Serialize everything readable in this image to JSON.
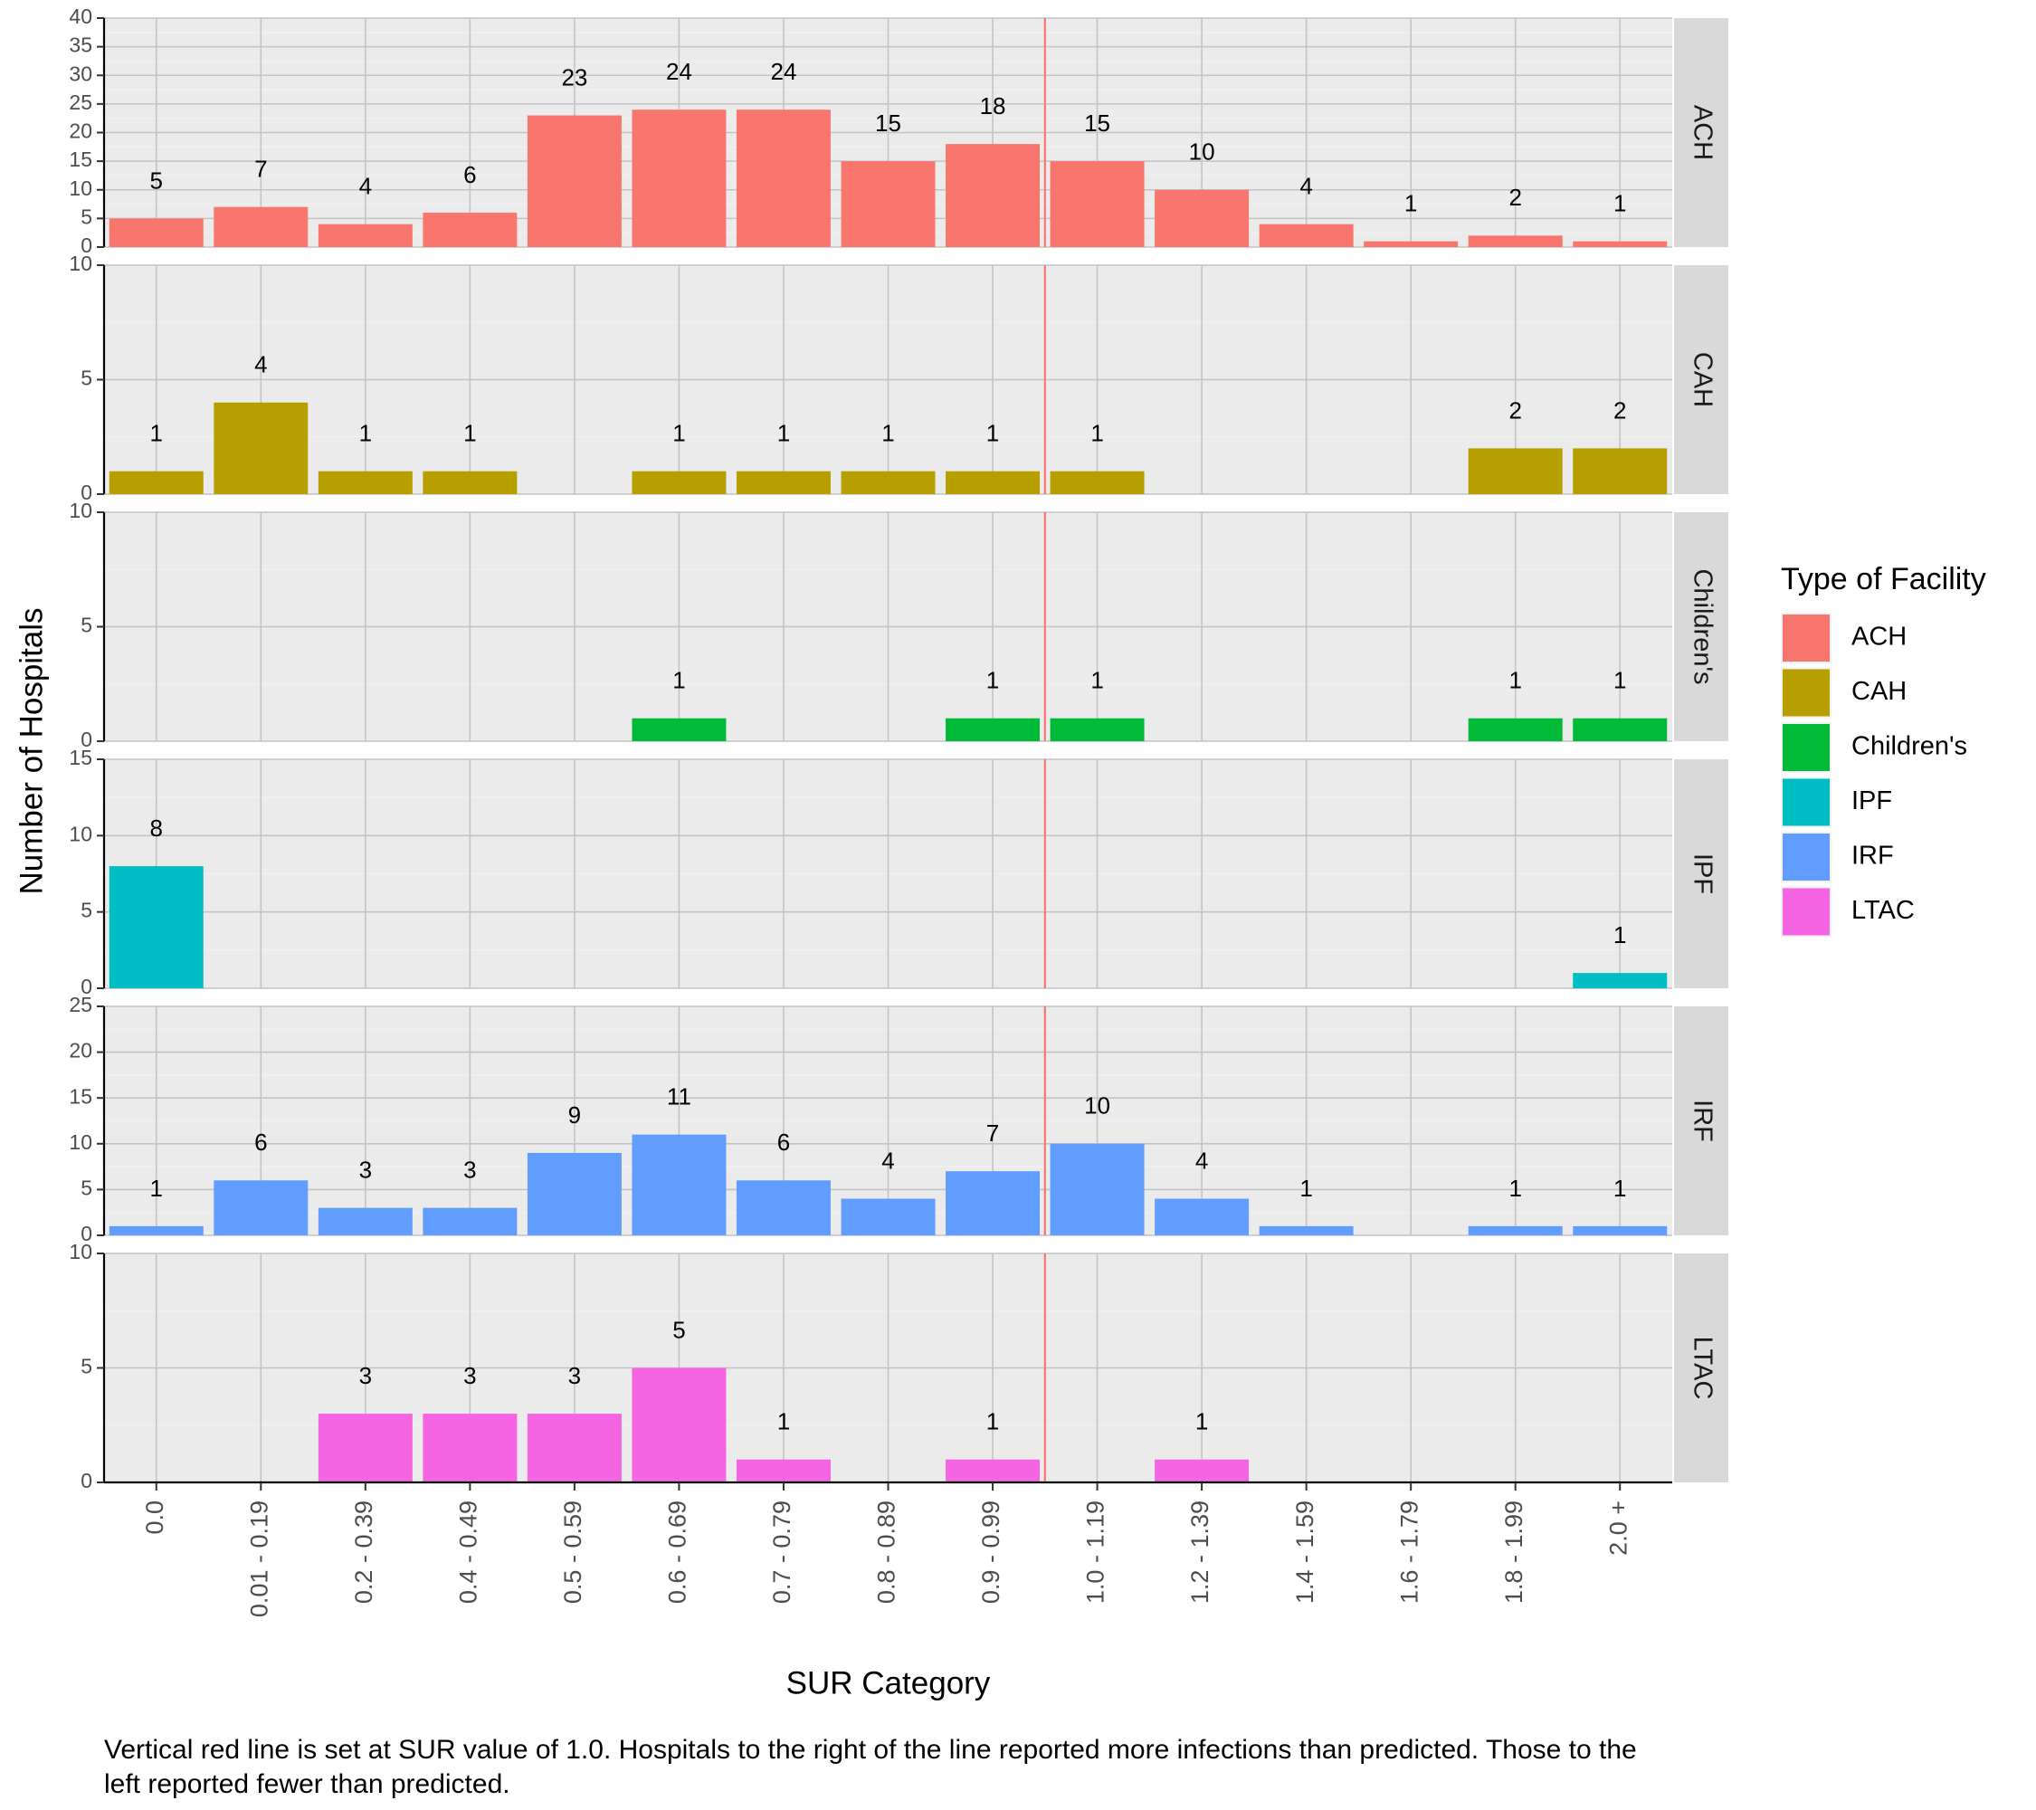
{
  "chart_data": {
    "type": "bar",
    "title": "",
    "xlabel": "SUR Category",
    "ylabel": "Number of Hospitals",
    "categories": [
      "0.0",
      "0.01 - 0.19",
      "0.2 - 0.39",
      "0.4 - 0.49",
      "0.5 - 0.59",
      "0.6 - 0.69",
      "0.7 - 0.79",
      "0.8 - 0.89",
      "0.9 - 0.99",
      "1.0 - 1.19",
      "1.2 - 1.39",
      "1.4 - 1.59",
      "1.6 - 1.79",
      "1.8 - 1.99",
      "2.0 +"
    ],
    "reference_line": {
      "position": "between 0.9 - 0.99 and 1.0 - 1.19",
      "color": "#F8766D"
    },
    "grid": true,
    "legend": {
      "title": "Type of Facility",
      "placement": "right"
    },
    "facets": [
      {
        "name": "ACH",
        "color": "#F8766D",
        "ylim": [
          0,
          40
        ],
        "yticks": [
          0,
          5,
          10,
          15,
          20,
          25,
          30,
          35,
          40
        ],
        "values": [
          5,
          7,
          4,
          6,
          23,
          24,
          24,
          15,
          18,
          15,
          10,
          4,
          1,
          2,
          1
        ]
      },
      {
        "name": "CAH",
        "color": "#B79F00",
        "ylim": [
          0,
          10
        ],
        "yticks": [
          0,
          5,
          10
        ],
        "values": [
          1,
          4,
          1,
          1,
          null,
          1,
          1,
          1,
          1,
          1,
          null,
          null,
          null,
          2,
          2
        ]
      },
      {
        "name": "Children's",
        "color": "#00BA38",
        "ylim": [
          0,
          10
        ],
        "yticks": [
          0,
          5,
          10
        ],
        "values": [
          null,
          null,
          null,
          null,
          null,
          1,
          null,
          null,
          1,
          1,
          null,
          null,
          null,
          1,
          1
        ]
      },
      {
        "name": "IPF",
        "color": "#00BFC4",
        "ylim": [
          0,
          15
        ],
        "yticks": [
          0,
          5,
          10,
          15
        ],
        "values": [
          8,
          null,
          null,
          null,
          null,
          null,
          null,
          null,
          null,
          null,
          null,
          null,
          null,
          null,
          1
        ]
      },
      {
        "name": "IRF",
        "color": "#619CFF",
        "ylim": [
          0,
          25
        ],
        "yticks": [
          0,
          5,
          10,
          15,
          20,
          25
        ],
        "values": [
          1,
          6,
          3,
          3,
          9,
          11,
          6,
          4,
          7,
          10,
          4,
          1,
          null,
          1,
          1
        ]
      },
      {
        "name": "LTAC",
        "color": "#F564E3",
        "ylim": [
          0,
          10
        ],
        "yticks": [
          0,
          5,
          10
        ],
        "values": [
          null,
          null,
          3,
          3,
          3,
          5,
          1,
          null,
          1,
          null,
          1,
          null,
          null,
          null,
          null
        ]
      }
    ]
  },
  "caption": "Vertical red line is set at SUR value of 1.0. Hospitals to the right of the line reported more infections than predicted. Those to the left reported fewer than predicted."
}
